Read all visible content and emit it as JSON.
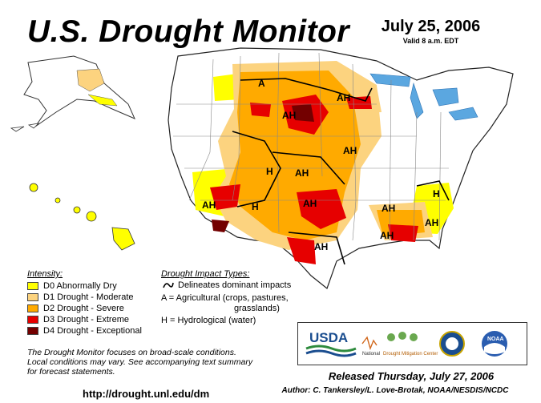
{
  "title": "U.S. Drought Monitor",
  "date": "July 25, 2006",
  "valid": "Valid 8 a.m. EDT",
  "legend": {
    "intensity_header": "Intensity:",
    "items": [
      {
        "label": "D0 Abnormally Dry",
        "color": "#ffff00"
      },
      {
        "label": "D1 Drought - Moderate",
        "color": "#fcd37f"
      },
      {
        "label": "D2 Drought - Severe",
        "color": "#ffaa00"
      },
      {
        "label": "D3 Drought - Extreme",
        "color": "#e60000"
      },
      {
        "label": "D4 Drought - Exceptional",
        "color": "#730000"
      }
    ]
  },
  "impacts": {
    "header": "Drought Impact Types:",
    "delineates": "Delineates dominant impacts",
    "agri_line1": "A = Agricultural (crops, pastures,",
    "agri_line2": "grasslands)",
    "hydro": "H = Hydrological (water)"
  },
  "map_labels": [
    "A",
    "AH",
    "AH",
    "AH",
    "AH",
    "H",
    "AH",
    "AH",
    "H",
    "AH",
    "AH",
    "H",
    "AH",
    "AH"
  ],
  "note": {
    "line1": "The Drought Monitor focuses on broad-scale conditions.",
    "line2": "Local conditions may vary. See accompanying text summary",
    "line3": "for forecast statements."
  },
  "url": "http://drought.unl.edu/dm",
  "released": "Released Thursday, July 27, 2006",
  "author": "Author: C. Tankersley/L. Love-Brotak, NOAA/NESDIS/NCDC",
  "logos": {
    "usda": "USDA",
    "ndmc_line1": "National",
    "ndmc_line2": "Drought Mitigation Center",
    "noaa": "NOAA"
  }
}
